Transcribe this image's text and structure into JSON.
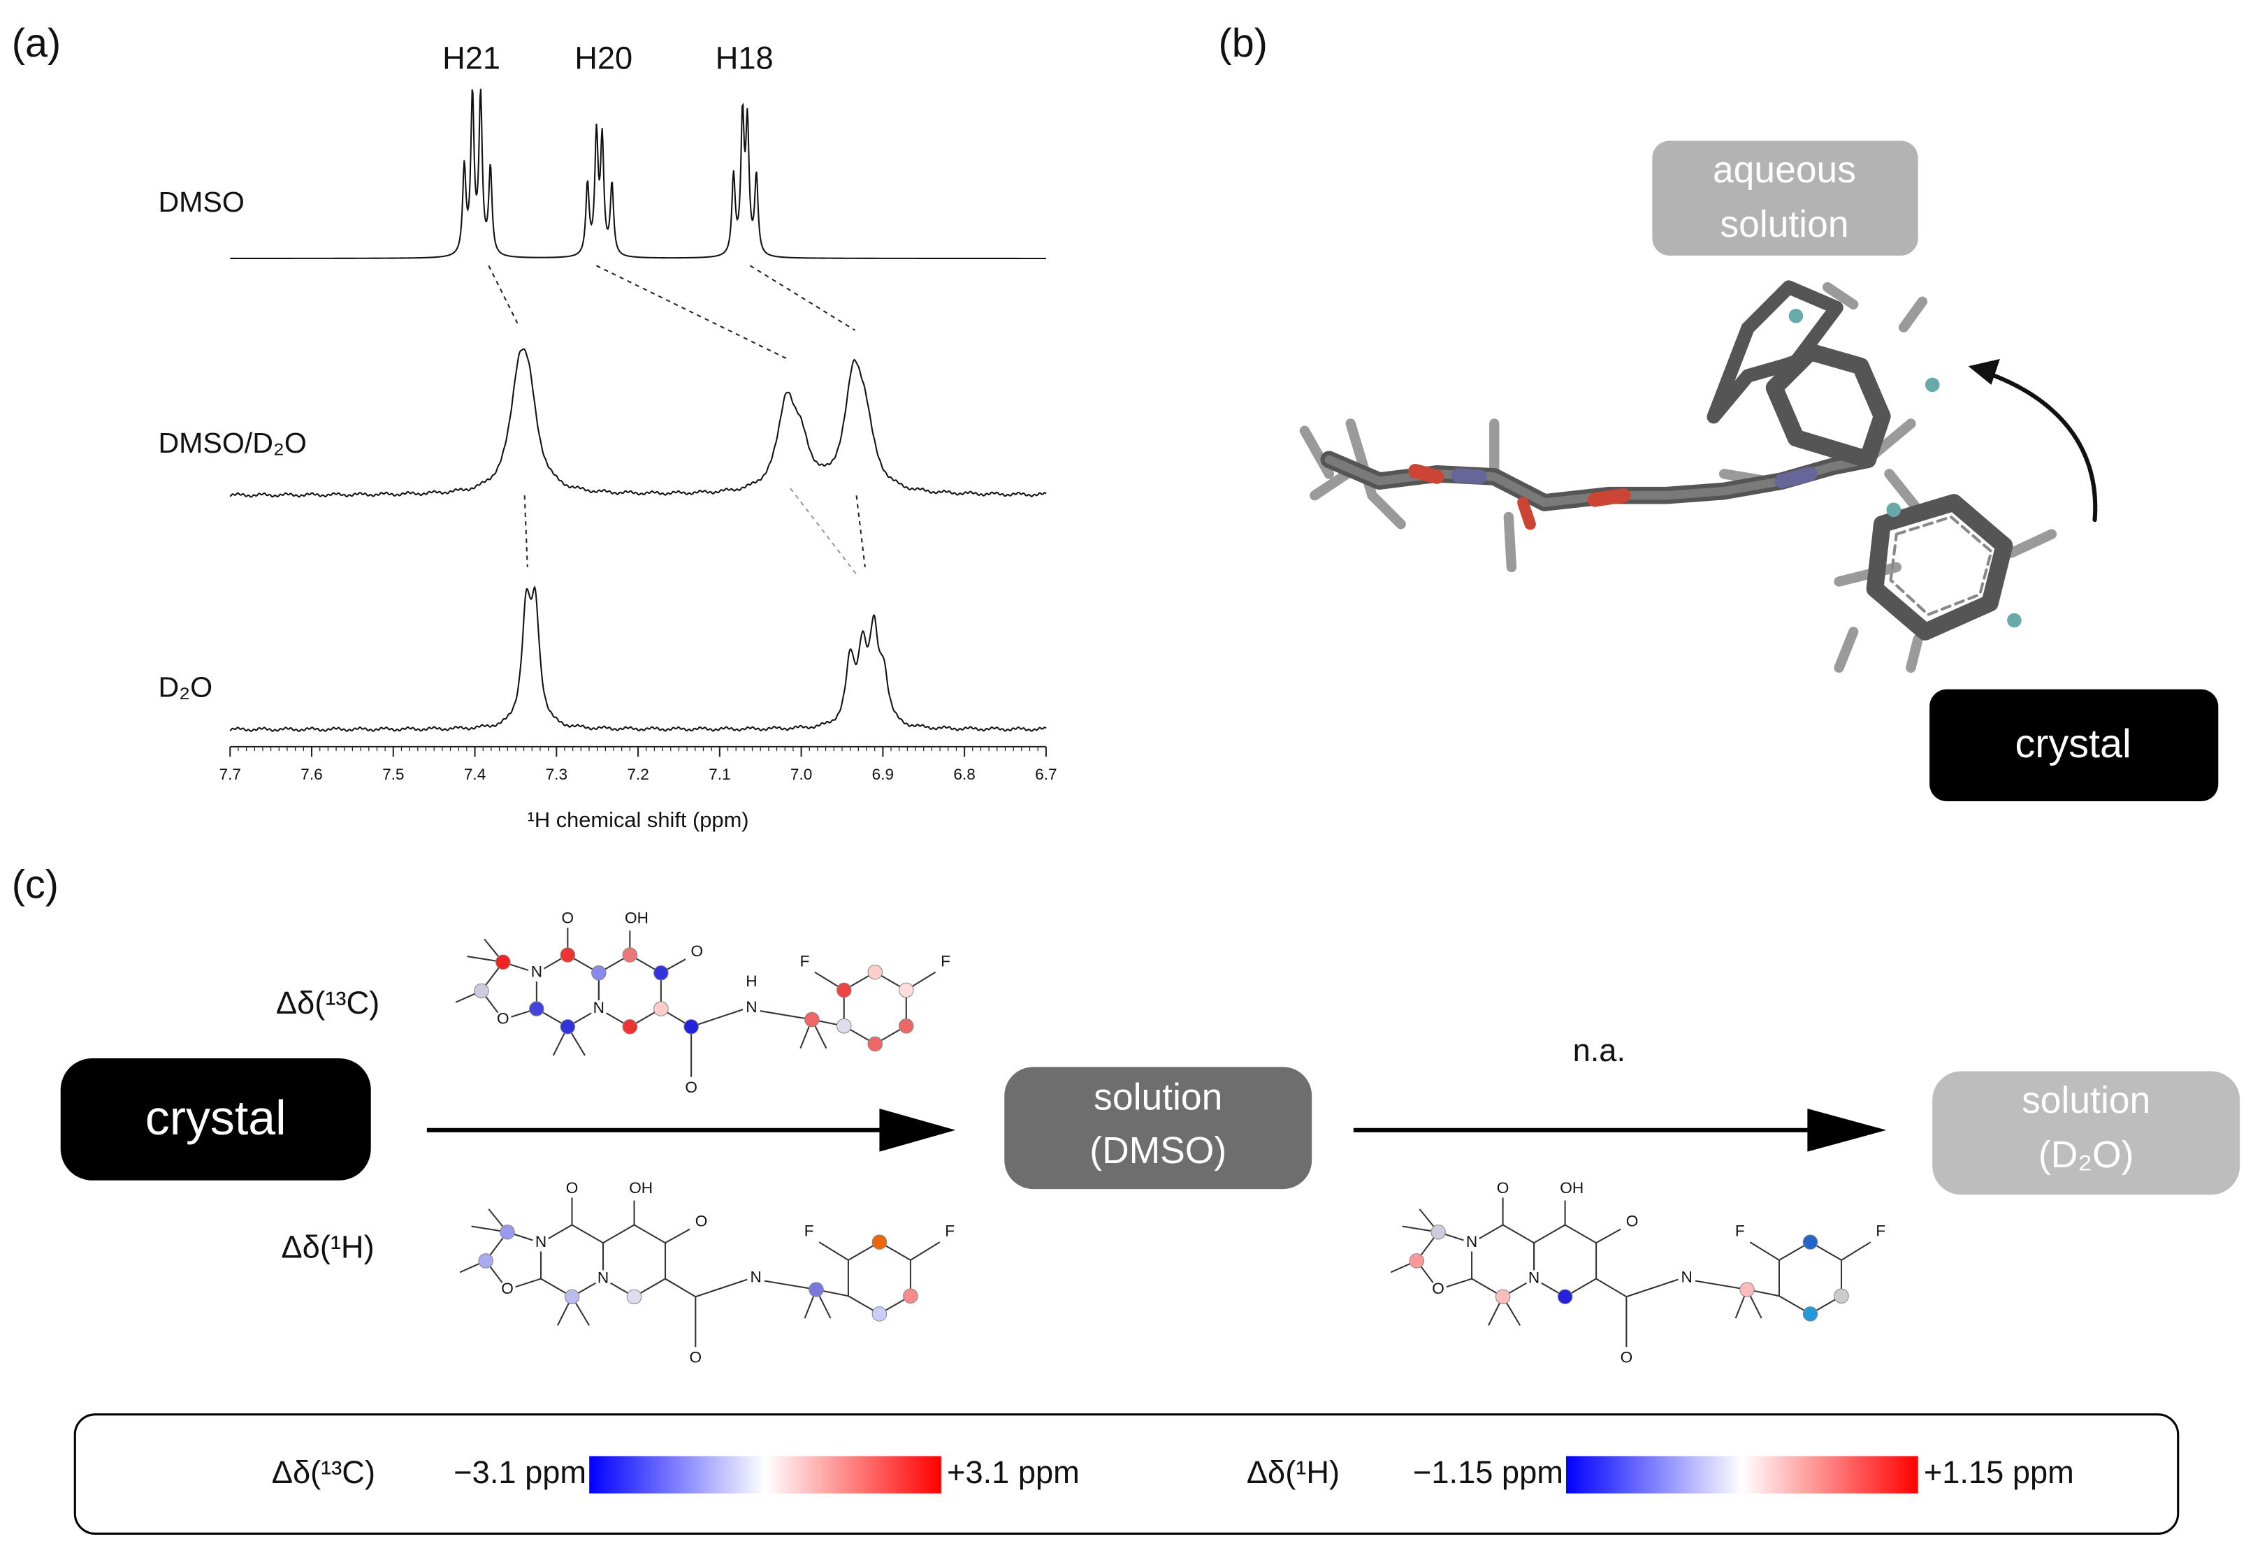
{
  "panels": {
    "a": {
      "label": "(a)",
      "peak_labels": [
        "H21",
        "H20",
        "H18"
      ],
      "spectra": [
        {
          "name": "DMSO",
          "peaks": [
            {
              "ppm": 7.413,
              "intensity": 0.55
            },
            {
              "ppm": 7.403,
              "intensity": 1.0
            },
            {
              "ppm": 7.393,
              "intensity": 1.0
            },
            {
              "ppm": 7.381,
              "intensity": 0.55
            },
            {
              "ppm": 7.262,
              "intensity": 0.45
            },
            {
              "ppm": 7.251,
              "intensity": 0.75
            },
            {
              "ppm": 7.244,
              "intensity": 0.72
            },
            {
              "ppm": 7.232,
              "intensity": 0.45
            },
            {
              "ppm": 7.083,
              "intensity": 0.5
            },
            {
              "ppm": 7.072,
              "intensity": 0.85
            },
            {
              "ppm": 7.066,
              "intensity": 0.8
            },
            {
              "ppm": 7.055,
              "intensity": 0.5
            }
          ]
        },
        {
          "name": "DMSO/D₂O",
          "peaks": [
            {
              "ppm": 7.346,
              "intensity": 0.62
            },
            {
              "ppm": 7.334,
              "intensity": 0.5
            },
            {
              "ppm": 7.018,
              "intensity": 0.55
            },
            {
              "ppm": 7.0,
              "intensity": 0.25
            },
            {
              "ppm": 6.936,
              "intensity": 0.66
            },
            {
              "ppm": 6.922,
              "intensity": 0.35
            }
          ]
        },
        {
          "name": "D₂O",
          "peaks": [
            {
              "ppm": 7.337,
              "intensity": 0.7
            },
            {
              "ppm": 7.326,
              "intensity": 0.7
            },
            {
              "ppm": 6.94,
              "intensity": 0.4
            },
            {
              "ppm": 6.925,
              "intensity": 0.45
            },
            {
              "ppm": 6.911,
              "intensity": 0.55
            },
            {
              "ppm": 6.899,
              "intensity": 0.3
            }
          ]
        }
      ],
      "xlim": [
        7.7,
        6.7
      ],
      "xticks": [
        7.7,
        7.6,
        7.5,
        7.4,
        7.3,
        7.2,
        7.1,
        {
          "value": 7,
          "label": "7.0"
        },
        6.9,
        6.8,
        6.7
      ],
      "xlabel": "¹H chemical shift (ppm)"
    },
    "b": {
      "label": "(b)",
      "aqueous_label": [
        "aqueous",
        "solution"
      ],
      "crystal_label": "crystal"
    },
    "c": {
      "label": "(c)",
      "crystal": "crystal",
      "c13_label": "Δδ(¹³C)",
      "h1_label": "Δδ(¹H)",
      "dmso_box": [
        "solution",
        "(DMSO)"
      ],
      "na": "n.a.",
      "d2o_box": [
        "solution",
        "(D₂O)"
      ],
      "molecules": [
        {
          "atoms": [
            "O",
            "OH",
            "O",
            "N",
            "N",
            "O",
            "N",
            "O",
            "F",
            "F",
            "H"
          ]
        },
        {
          "atoms": [
            "O",
            "OH",
            "O",
            "N",
            "N",
            "O",
            "N",
            "O",
            "F",
            "F"
          ]
        },
        {
          "atoms": [
            "O",
            "OH",
            "O",
            "N",
            "N",
            "O",
            "N",
            "O",
            "F",
            "F"
          ]
        }
      ],
      "legend": {
        "c13_label": "Δδ(¹³C)",
        "c13_min": "−3.1 ppm",
        "c13_max": "+3.1 ppm",
        "h1_label": "Δδ(¹H)",
        "h1_min": "−1.15 ppm",
        "h1_max": "+1.15 ppm"
      }
    }
  }
}
